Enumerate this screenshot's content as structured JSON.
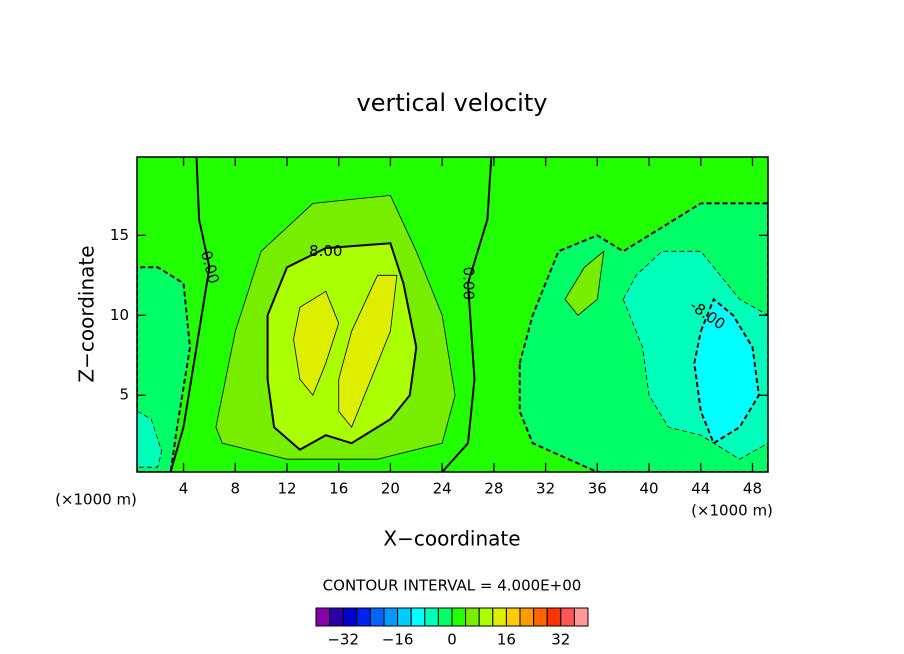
{
  "chart_data": {
    "type": "contour",
    "title": "vertical velocity",
    "x_label": "X−coordinate",
    "y_label": "Z−coordinate",
    "x_unit": "(×1000 m)",
    "y_unit": "(×1000 m)",
    "interval_label": "CONTOUR INTERVAL = 4.000E+00",
    "xlim": [
      0.4,
      49.2
    ],
    "ylim": [
      0.2,
      19.9
    ],
    "xticks": [
      4,
      8,
      12,
      16,
      20,
      24,
      28,
      32,
      36,
      40,
      44,
      48
    ],
    "yticks": [
      5,
      10,
      15
    ],
    "base_level": 2,
    "levels": [
      -40,
      -36,
      -32,
      -28,
      -24,
      -20,
      -16,
      -12,
      -8,
      -4,
      0,
      4,
      8,
      12,
      16,
      20,
      24,
      28,
      32,
      36,
      40
    ],
    "colors": [
      "#8800aa",
      "#2a00aa",
      "#0000cc",
      "#0022ee",
      "#0066ff",
      "#0099ff",
      "#00ccff",
      "#00ffff",
      "#00ffbb",
      "#00ff66",
      "#22ff00",
      "#77ee00",
      "#aaff00",
      "#ddee00",
      "#ffcc00",
      "#ff9900",
      "#ff6600",
      "#ff3300",
      "#ff5555",
      "#ff9999"
    ],
    "colorbar_ticks": [
      {
        "value": -32,
        "label": "−32"
      },
      {
        "value": -16,
        "label": "−16"
      },
      0,
      16,
      32
    ],
    "regions": [
      {
        "level": -2,
        "points": [
          [
            0.4,
            0.2
          ],
          [
            0.4,
            13
          ],
          [
            2,
            13
          ],
          [
            4,
            12
          ],
          [
            4.5,
            8
          ],
          [
            3.5,
            3
          ],
          [
            3,
            0.2
          ]
        ]
      },
      {
        "level": -6,
        "points": [
          [
            0.4,
            0.5
          ],
          [
            0.4,
            4
          ],
          [
            1.5,
            3.5
          ],
          [
            2.3,
            1.5
          ],
          [
            2,
            0.5
          ]
        ]
      },
      {
        "level": -2,
        "points": [
          [
            30,
            7
          ],
          [
            31,
            10
          ],
          [
            33,
            14
          ],
          [
            36,
            15
          ],
          [
            38,
            14
          ],
          [
            40,
            15
          ],
          [
            44,
            17
          ],
          [
            49.2,
            17
          ],
          [
            49.2,
            0.2
          ],
          [
            36,
            0.2
          ],
          [
            31,
            2
          ],
          [
            30,
            4
          ]
        ]
      },
      {
        "level": -6,
        "points": [
          [
            38,
            11
          ],
          [
            39,
            12.5
          ],
          [
            41,
            14
          ],
          [
            44,
            14
          ],
          [
            47,
            11
          ],
          [
            49.2,
            10
          ],
          [
            49.2,
            2
          ],
          [
            47,
            1
          ],
          [
            44,
            2.5
          ],
          [
            41.5,
            3
          ],
          [
            40,
            5
          ],
          [
            39.5,
            8
          ]
        ]
      },
      {
        "level": -10,
        "points": [
          [
            44,
            9
          ],
          [
            45,
            11
          ],
          [
            46.5,
            10
          ],
          [
            48,
            8
          ],
          [
            48.5,
            5
          ],
          [
            47,
            3
          ],
          [
            45,
            2
          ],
          [
            44,
            4
          ],
          [
            43.5,
            7
          ]
        ]
      },
      {
        "level": 6,
        "points": [
          [
            6.5,
            3
          ],
          [
            8,
            9
          ],
          [
            10,
            14
          ],
          [
            14,
            17
          ],
          [
            20,
            17.5
          ],
          [
            22,
            14
          ],
          [
            24,
            10
          ],
          [
            25,
            5
          ],
          [
            24,
            2
          ],
          [
            19,
            1
          ],
          [
            12,
            1
          ],
          [
            7,
            2
          ]
        ]
      },
      {
        "level": 10,
        "points": [
          [
            10.5,
            10
          ],
          [
            12,
            13
          ],
          [
            15,
            14.2
          ],
          [
            20,
            14.5
          ],
          [
            21,
            12
          ],
          [
            22,
            8
          ],
          [
            21.5,
            5
          ],
          [
            20,
            3.5
          ],
          [
            17,
            2
          ],
          [
            15,
            2.5
          ],
          [
            13,
            1.6
          ],
          [
            11,
            3
          ],
          [
            10.5,
            6
          ]
        ]
      },
      {
        "level": 14,
        "points": [
          [
            12.5,
            8.5
          ],
          [
            13,
            10.5
          ],
          [
            15,
            11.5
          ],
          [
            16,
            9.5
          ],
          [
            15,
            7
          ],
          [
            14,
            5
          ],
          [
            13,
            6
          ]
        ]
      },
      {
        "level": 14,
        "points": [
          [
            16,
            6
          ],
          [
            17,
            9
          ],
          [
            19,
            12.5
          ],
          [
            20.5,
            12.5
          ],
          [
            20,
            9
          ],
          [
            18.5,
            6
          ],
          [
            17,
            3
          ],
          [
            16,
            4
          ]
        ]
      },
      {
        "level": 6,
        "points": [
          [
            33.5,
            11
          ],
          [
            35,
            13
          ],
          [
            36.5,
            14
          ],
          [
            36,
            11
          ],
          [
            34.5,
            10
          ]
        ]
      }
    ],
    "lines": [
      {
        "level": 0,
        "points": [
          [
            5,
            19.9
          ],
          [
            5.2,
            16
          ],
          [
            6,
            13
          ],
          [
            5,
            8
          ],
          [
            4,
            3
          ],
          [
            3,
            0.2
          ]
        ]
      },
      {
        "level": 0,
        "points": [
          [
            27.8,
            19.9
          ],
          [
            27.5,
            16
          ],
          [
            26,
            12
          ],
          [
            26.5,
            6
          ],
          [
            26,
            2
          ],
          [
            24,
            0.2
          ]
        ]
      }
    ],
    "contour_labels": [
      "0.00",
      "8.00",
      "0.00",
      "-8.00"
    ]
  }
}
